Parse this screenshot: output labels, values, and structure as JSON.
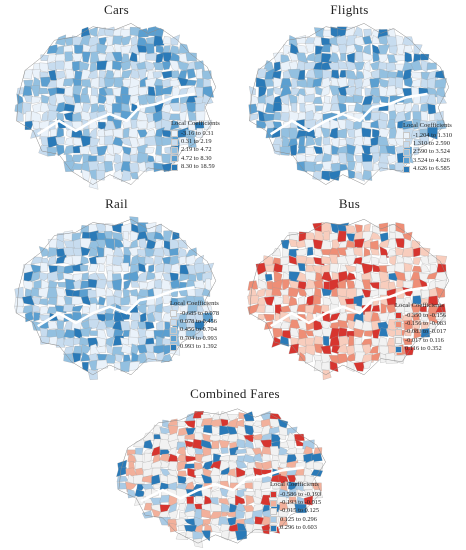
{
  "figure": {
    "panels": [
      {
        "id": "cars",
        "title": "Cars",
        "legend_title": "Local Coefficients",
        "classes": [
          {
            "label": "-3.16 to 0.31",
            "color": "#eaf2fa"
          },
          {
            "label": "0.31 to 2.19",
            "color": "#c7dcef"
          },
          {
            "label": "2.19 to 4.72",
            "color": "#93c0e0"
          },
          {
            "label": "4.72 to 8.30",
            "color": "#5b9fd0"
          },
          {
            "label": "8.30 to 18.59",
            "color": "#2a7ab8"
          }
        ]
      },
      {
        "id": "flights",
        "title": "Flights",
        "legend_title": "Local Coefficients",
        "classes": [
          {
            "label": "-1.204 to 1.310",
            "color": "#eaf2fa"
          },
          {
            "label": "1.310 to 2.590",
            "color": "#c7dcef"
          },
          {
            "label": "2.590 to 3.524",
            "color": "#93c0e0"
          },
          {
            "label": "3.524 to 4.626",
            "color": "#5b9fd0"
          },
          {
            "label": "4.626 to 6.585",
            "color": "#2a7ab8"
          }
        ]
      },
      {
        "id": "rail",
        "title": "Rail",
        "legend_title": "Local Coefficients",
        "classes": [
          {
            "label": "-0.685 to 0.078",
            "color": "#eaf2fa"
          },
          {
            "label": "0.078 to 0.456",
            "color": "#c7dcef"
          },
          {
            "label": "0.456 to 0.704",
            "color": "#93c0e0"
          },
          {
            "label": "0.704 to 0.993",
            "color": "#5b9fd0"
          },
          {
            "label": "0.993 to 1.392",
            "color": "#2a7ab8"
          }
        ]
      },
      {
        "id": "bus",
        "title": "Bus",
        "legend_title": "Local Coefficients",
        "classes": [
          {
            "label": "-0.350 to -0.156",
            "color": "#d7352f"
          },
          {
            "label": "-0.156 to -0.083",
            "color": "#ee8e76"
          },
          {
            "label": "-0.083 to -0.017",
            "color": "#f8cdbd"
          },
          {
            "label": "-0.017 to 0.116",
            "color": "#f2f2f2"
          },
          {
            "label": "0.116 to 0.352",
            "color": "#2a7ab8"
          }
        ]
      },
      {
        "id": "combined",
        "title": "Combined Fares",
        "legend_title": "Local Coefficients",
        "classes": [
          {
            "label": "-0.586 to -0.193",
            "color": "#d7352f"
          },
          {
            "label": "-0.193 to -0.015",
            "color": "#f2b09b"
          },
          {
            "label": "-0.015 to 0.125",
            "color": "#f2f2f2"
          },
          {
            "label": "0.125 to 0.296",
            "color": "#a9cbe6"
          },
          {
            "label": "0.296 to 0.603",
            "color": "#2a7ab8"
          }
        ]
      }
    ]
  }
}
